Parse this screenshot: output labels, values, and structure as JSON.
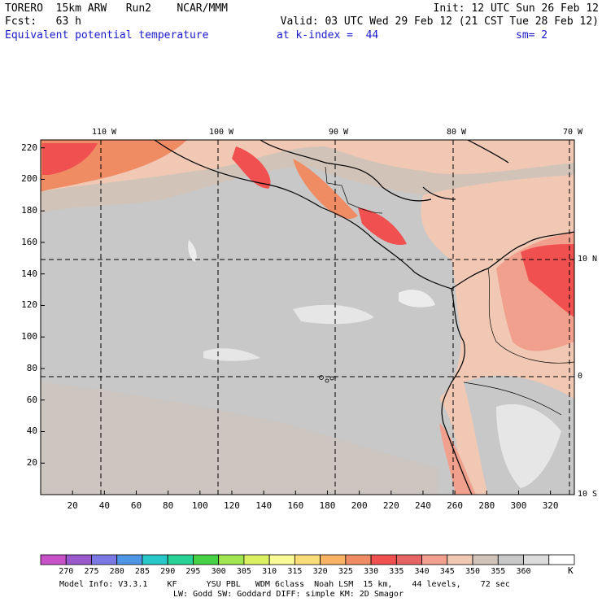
{
  "header": {
    "line1_left": "TORERO  15km ARW   Run2    NCAR/MMM",
    "line1_right": "Init: 12 UTC Sun 26 Feb 12",
    "line2_left": "Fcst:   63 h",
    "line2_right": "Valid: 03 UTC Wed 29 Feb 12 (21 CST Tue 28 Feb 12)",
    "field": "Equivalent potential temperature",
    "level": "at k-index =  44",
    "smoothing": "sm= 2"
  },
  "map": {
    "x_ticks": [
      "20",
      "40",
      "60",
      "80",
      "100",
      "120",
      "140",
      "160",
      "180",
      "200",
      "220",
      "240",
      "260",
      "280",
      "300",
      "320"
    ],
    "y_ticks": [
      "20",
      "40",
      "60",
      "80",
      "100",
      "120",
      "140",
      "160",
      "180",
      "200",
      "220"
    ],
    "lon_labels": [
      "110 W",
      "100 W",
      "90 W",
      "80 W",
      "70 W"
    ],
    "lat_labels": [
      "10 N",
      "0",
      "10 S"
    ]
  },
  "colorbar": {
    "labels": [
      "270",
      "275",
      "280",
      "285",
      "290",
      "295",
      "300",
      "305",
      "310",
      "315",
      "320",
      "325",
      "330",
      "335",
      "340",
      "345",
      "350",
      "355",
      "360"
    ],
    "unit": "K",
    "colors": [
      "#c850c8",
      "#9a5acd",
      "#7b78e6",
      "#5096e6",
      "#28c8c8",
      "#28d296",
      "#46d246",
      "#a0e650",
      "#dcf064",
      "#fafa96",
      "#fadc78",
      "#f8b464",
      "#f08c64",
      "#f05050",
      "#e66464",
      "#f0a08c",
      "#f0c8b4",
      "#d2c3b9",
      "#c8c8c8",
      "#dcdcdc",
      "#ffffff"
    ]
  },
  "footer": {
    "line1": "Model Info: V3.3.1    KF      YSU PBL   WDM 6class  Noah LSM  15 km,    44 levels,    72 sec",
    "line2": "LW: Godd SW: Goddard DIFF: simple KM: 2D Smagor"
  }
}
